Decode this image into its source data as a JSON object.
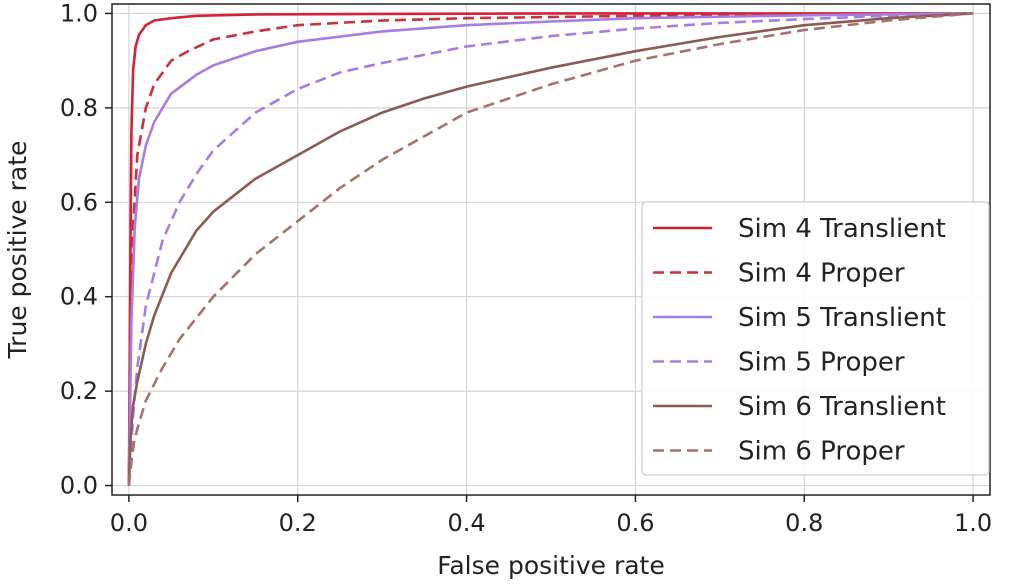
{
  "chart_data": {
    "type": "line",
    "title": "",
    "xlabel": "False positive rate",
    "ylabel": "True positive rate",
    "xlim": [
      0.0,
      1.0
    ],
    "ylim": [
      0.0,
      1.0
    ],
    "xticks": [
      "0.0",
      "0.2",
      "0.4",
      "0.6",
      "0.8",
      "1.0"
    ],
    "yticks": [
      "0.0",
      "0.2",
      "0.4",
      "0.6",
      "0.8",
      "1.0"
    ],
    "grid": true,
    "legend_position": "lower-right",
    "series": [
      {
        "name": "Sim 4 Translient",
        "color": "#d62035",
        "dash": "solid",
        "x": [
          0,
          0.001,
          0.002,
          0.003,
          0.005,
          0.008,
          0.012,
          0.02,
          0.03,
          0.05,
          0.08,
          0.15,
          0.3,
          0.5,
          0.8,
          1.0
        ],
        "y": [
          0,
          0.25,
          0.55,
          0.75,
          0.88,
          0.93,
          0.955,
          0.975,
          0.985,
          0.99,
          0.995,
          0.998,
          0.999,
          1.0,
          1.0,
          1.0
        ]
      },
      {
        "name": "Sim 4 Proper",
        "color": "#c8323f",
        "dash": "dashed",
        "x": [
          0,
          0.002,
          0.005,
          0.01,
          0.02,
          0.03,
          0.05,
          0.07,
          0.1,
          0.15,
          0.2,
          0.3,
          0.4,
          0.6,
          0.8,
          1.0
        ],
        "y": [
          0,
          0.35,
          0.55,
          0.7,
          0.8,
          0.85,
          0.9,
          0.92,
          0.945,
          0.962,
          0.975,
          0.985,
          0.99,
          0.995,
          0.998,
          1.0
        ]
      },
      {
        "name": "Sim 5 Translient",
        "color": "#a67de0",
        "dash": "solid",
        "x": [
          0,
          0.003,
          0.007,
          0.012,
          0.02,
          0.03,
          0.05,
          0.08,
          0.1,
          0.15,
          0.2,
          0.3,
          0.4,
          0.5,
          0.6,
          0.8,
          1.0
        ],
        "y": [
          0,
          0.35,
          0.55,
          0.65,
          0.72,
          0.77,
          0.83,
          0.87,
          0.89,
          0.92,
          0.94,
          0.962,
          0.975,
          0.983,
          0.99,
          0.996,
          1.0
        ]
      },
      {
        "name": "Sim 5 Proper",
        "color": "#a67de0",
        "dash": "dashed",
        "x": [
          0,
          0.005,
          0.01,
          0.02,
          0.04,
          0.06,
          0.08,
          0.1,
          0.15,
          0.2,
          0.25,
          0.3,
          0.4,
          0.5,
          0.6,
          0.7,
          0.8,
          0.9,
          1.0
        ],
        "y": [
          0,
          0.15,
          0.25,
          0.38,
          0.52,
          0.6,
          0.66,
          0.71,
          0.79,
          0.84,
          0.875,
          0.895,
          0.93,
          0.952,
          0.968,
          0.98,
          0.988,
          0.995,
          1.0
        ]
      },
      {
        "name": "Sim 6 Translient",
        "color": "#8c5c53",
        "dash": "solid",
        "x": [
          0,
          0.002,
          0.005,
          0.01,
          0.02,
          0.03,
          0.05,
          0.08,
          0.1,
          0.15,
          0.2,
          0.25,
          0.3,
          0.35,
          0.4,
          0.5,
          0.6,
          0.7,
          0.8,
          0.9,
          1.0
        ],
        "y": [
          0,
          0.1,
          0.17,
          0.22,
          0.3,
          0.36,
          0.45,
          0.54,
          0.58,
          0.65,
          0.7,
          0.75,
          0.79,
          0.82,
          0.845,
          0.885,
          0.92,
          0.95,
          0.975,
          0.99,
          1.0
        ]
      },
      {
        "name": "Sim 6 Proper",
        "color": "#a3746b",
        "dash": "dashed",
        "x": [
          0,
          0.003,
          0.006,
          0.01,
          0.02,
          0.04,
          0.06,
          0.1,
          0.15,
          0.2,
          0.25,
          0.3,
          0.35,
          0.4,
          0.5,
          0.6,
          0.7,
          0.8,
          0.9,
          1.0
        ],
        "y": [
          0,
          0.05,
          0.09,
          0.12,
          0.18,
          0.25,
          0.31,
          0.4,
          0.49,
          0.56,
          0.63,
          0.69,
          0.74,
          0.79,
          0.85,
          0.9,
          0.935,
          0.965,
          0.985,
          1.0
        ]
      }
    ]
  }
}
